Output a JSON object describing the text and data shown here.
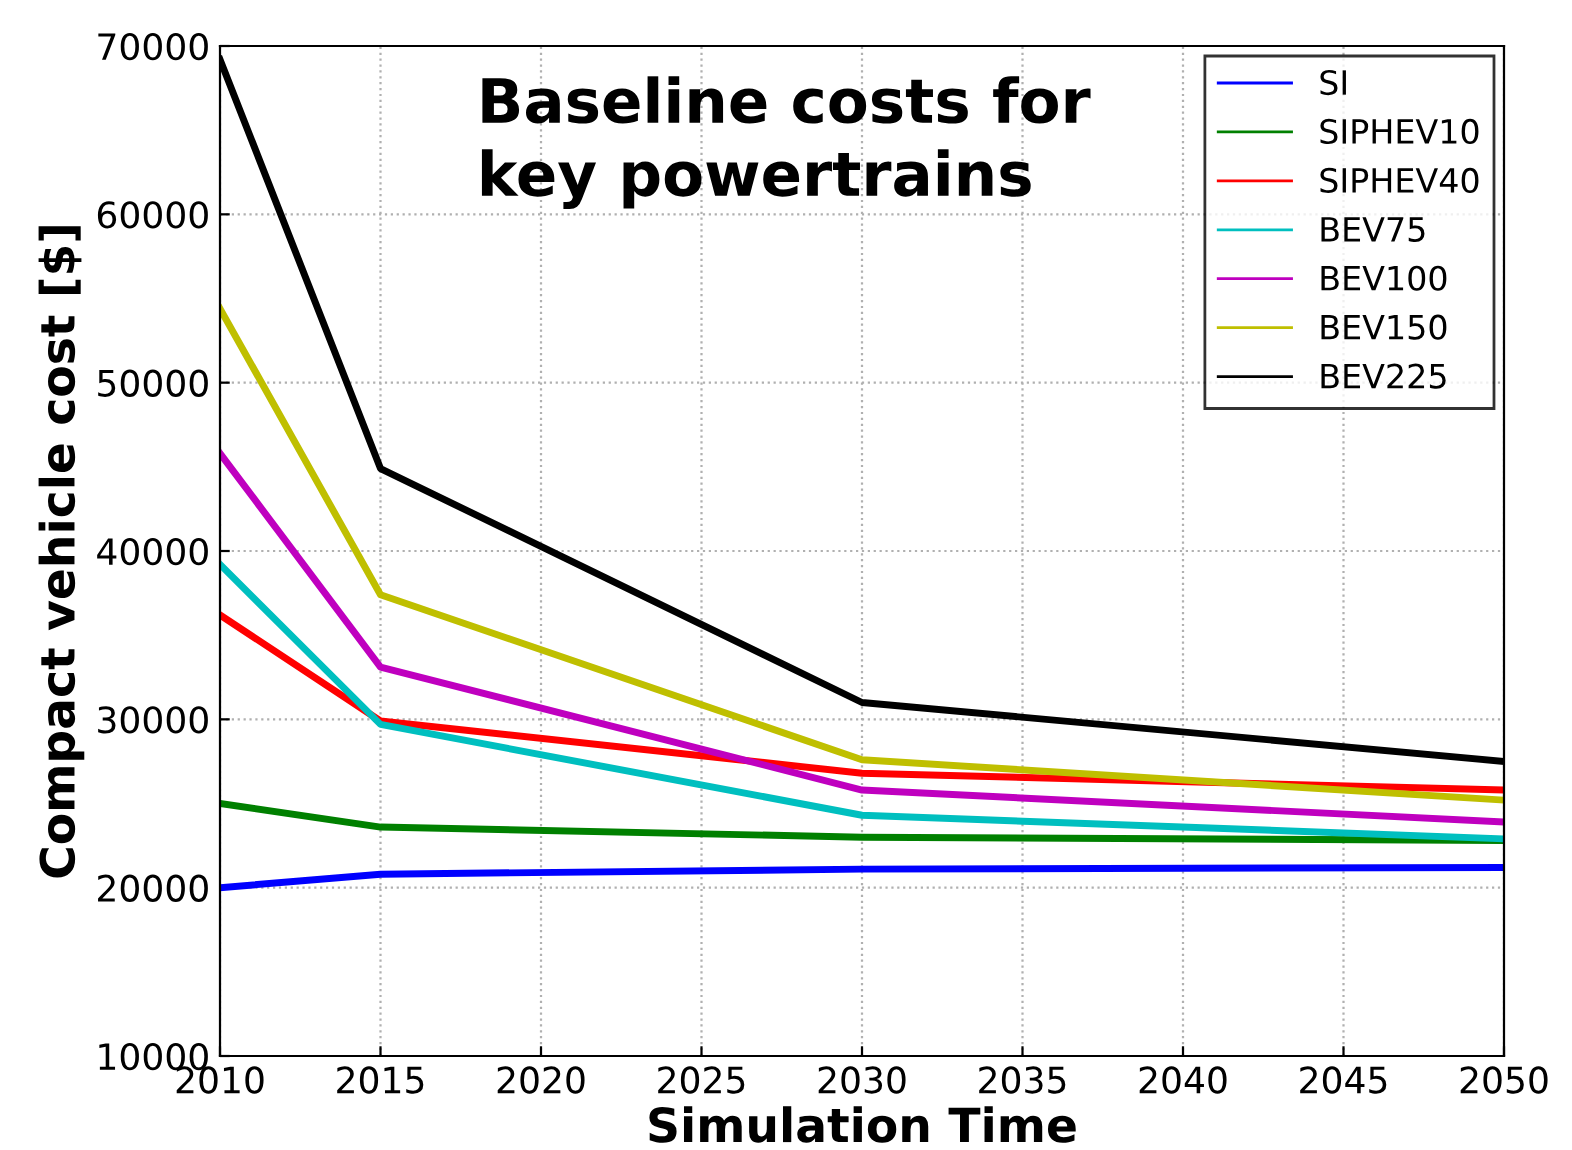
{
  "chart_data": {
    "type": "line",
    "title": "Baseline costs for\nkey powertrains",
    "xlabel": "Simulation Time",
    "ylabel": "Compact vehicle cost [$]",
    "x": [
      2010,
      2015,
      2030,
      2050
    ],
    "series": [
      {
        "name": "SI",
        "color": "#0000ff",
        "values": [
          20000,
          20800,
          21100,
          21200
        ]
      },
      {
        "name": "SIPHEV10",
        "color": "#008000",
        "values": [
          25000,
          23600,
          23000,
          22800
        ]
      },
      {
        "name": "SIPHEV40",
        "color": "#ff0000",
        "values": [
          36200,
          29900,
          26800,
          25800
        ]
      },
      {
        "name": "BEV75",
        "color": "#00bfbf",
        "values": [
          39200,
          29700,
          24300,
          22900
        ]
      },
      {
        "name": "BEV100",
        "color": "#bf00bf",
        "values": [
          45800,
          33100,
          25800,
          23900
        ]
      },
      {
        "name": "BEV150",
        "color": "#bfbf00",
        "values": [
          54400,
          37400,
          27600,
          25200
        ]
      },
      {
        "name": "BEV225",
        "color": "#000000",
        "values": [
          69200,
          44900,
          31000,
          27500
        ]
      }
    ],
    "xlim": [
      2010,
      2050
    ],
    "xticks": [
      2010,
      2015,
      2020,
      2025,
      2030,
      2035,
      2040,
      2045,
      2050
    ],
    "ylim": [
      10000,
      70000
    ],
    "yticks": [
      10000,
      20000,
      30000,
      40000,
      50000,
      60000,
      70000
    ],
    "grid": true,
    "legend": "top right",
    "marker": "none",
    "line_style": "solid"
  }
}
